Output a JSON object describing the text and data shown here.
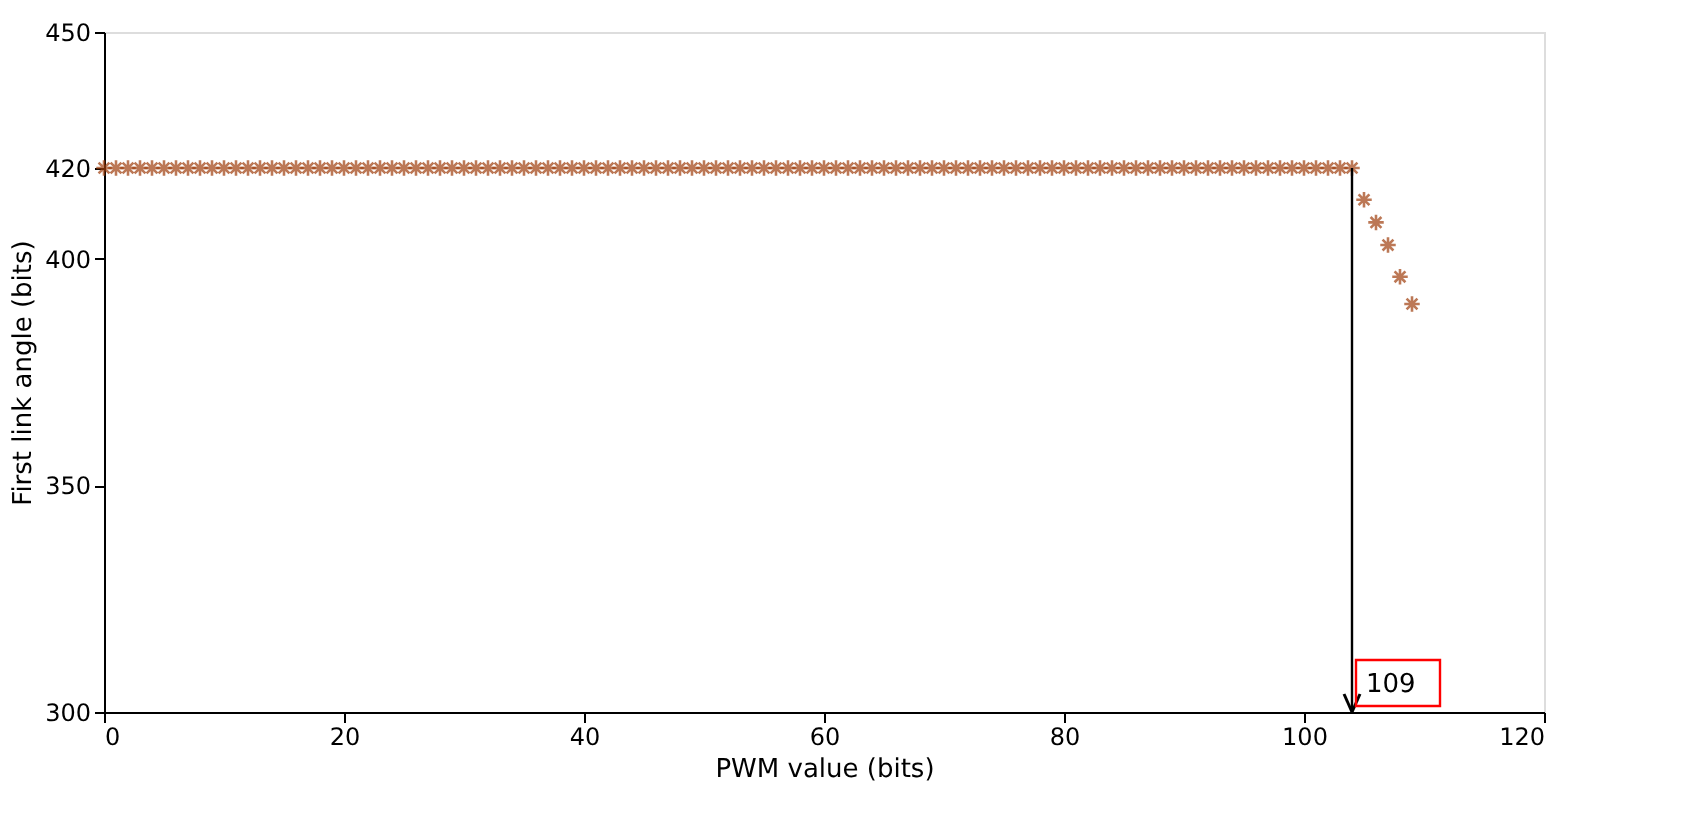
{
  "chart_data": {
    "type": "scatter",
    "xlabel": "PWM value  (bits)",
    "ylabel": "First link angle (bits)",
    "x": [
      0,
      1,
      2,
      3,
      4,
      5,
      6,
      7,
      8,
      9,
      10,
      11,
      12,
      13,
      14,
      15,
      16,
      17,
      18,
      19,
      20,
      21,
      22,
      23,
      24,
      25,
      26,
      27,
      28,
      29,
      30,
      31,
      32,
      33,
      34,
      35,
      36,
      37,
      38,
      39,
      40,
      41,
      42,
      43,
      44,
      45,
      46,
      47,
      48,
      49,
      50,
      51,
      52,
      53,
      54,
      55,
      56,
      57,
      58,
      59,
      60,
      61,
      62,
      63,
      64,
      65,
      66,
      67,
      68,
      69,
      70,
      71,
      72,
      73,
      74,
      75,
      76,
      77,
      78,
      79,
      80,
      81,
      82,
      83,
      84,
      85,
      86,
      87,
      88,
      89,
      90,
      91,
      92,
      93,
      94,
      95,
      96,
      97,
      98,
      99,
      100,
      101,
      102,
      103,
      104,
      105,
      106,
      107,
      108,
      109
    ],
    "series": [
      {
        "color": "#a0400f",
        "values": [
          420,
          420,
          420,
          420,
          420,
          420,
          420,
          420,
          420,
          420,
          420,
          420,
          420,
          420,
          420,
          420,
          420,
          420,
          420,
          420,
          420,
          420,
          420,
          420,
          420,
          420,
          420,
          420,
          420,
          420,
          420,
          420,
          420,
          420,
          420,
          420,
          420,
          420,
          420,
          420,
          420,
          420,
          420,
          420,
          420,
          420,
          420,
          420,
          420,
          420,
          420,
          420,
          420,
          420,
          420,
          420,
          420,
          420,
          420,
          420,
          420,
          420,
          420,
          420,
          420,
          420,
          420,
          420,
          420,
          420,
          420,
          420,
          420,
          420,
          420,
          420,
          420,
          420,
          420,
          420,
          420,
          420,
          420,
          420,
          420,
          420,
          420,
          420,
          420,
          420,
          420,
          420,
          420,
          420,
          420,
          420,
          420,
          420,
          420,
          420,
          420,
          420,
          420,
          420,
          420,
          413,
          408,
          403,
          396,
          390
        ]
      }
    ],
    "marker": "cross",
    "xlim": [
      0,
      120
    ],
    "ylim": [
      300,
      450
    ],
    "xticks": [
      0,
      20,
      40,
      60,
      80,
      100,
      120
    ],
    "yticks": [
      300,
      350,
      400,
      420,
      450
    ],
    "grid": false,
    "ref_lines": [
      {
        "axis": "x",
        "value": 104,
        "color": "#000000"
      }
    ],
    "annotations": [
      {
        "text": "109",
        "x": 104,
        "y": 300
      }
    ]
  }
}
